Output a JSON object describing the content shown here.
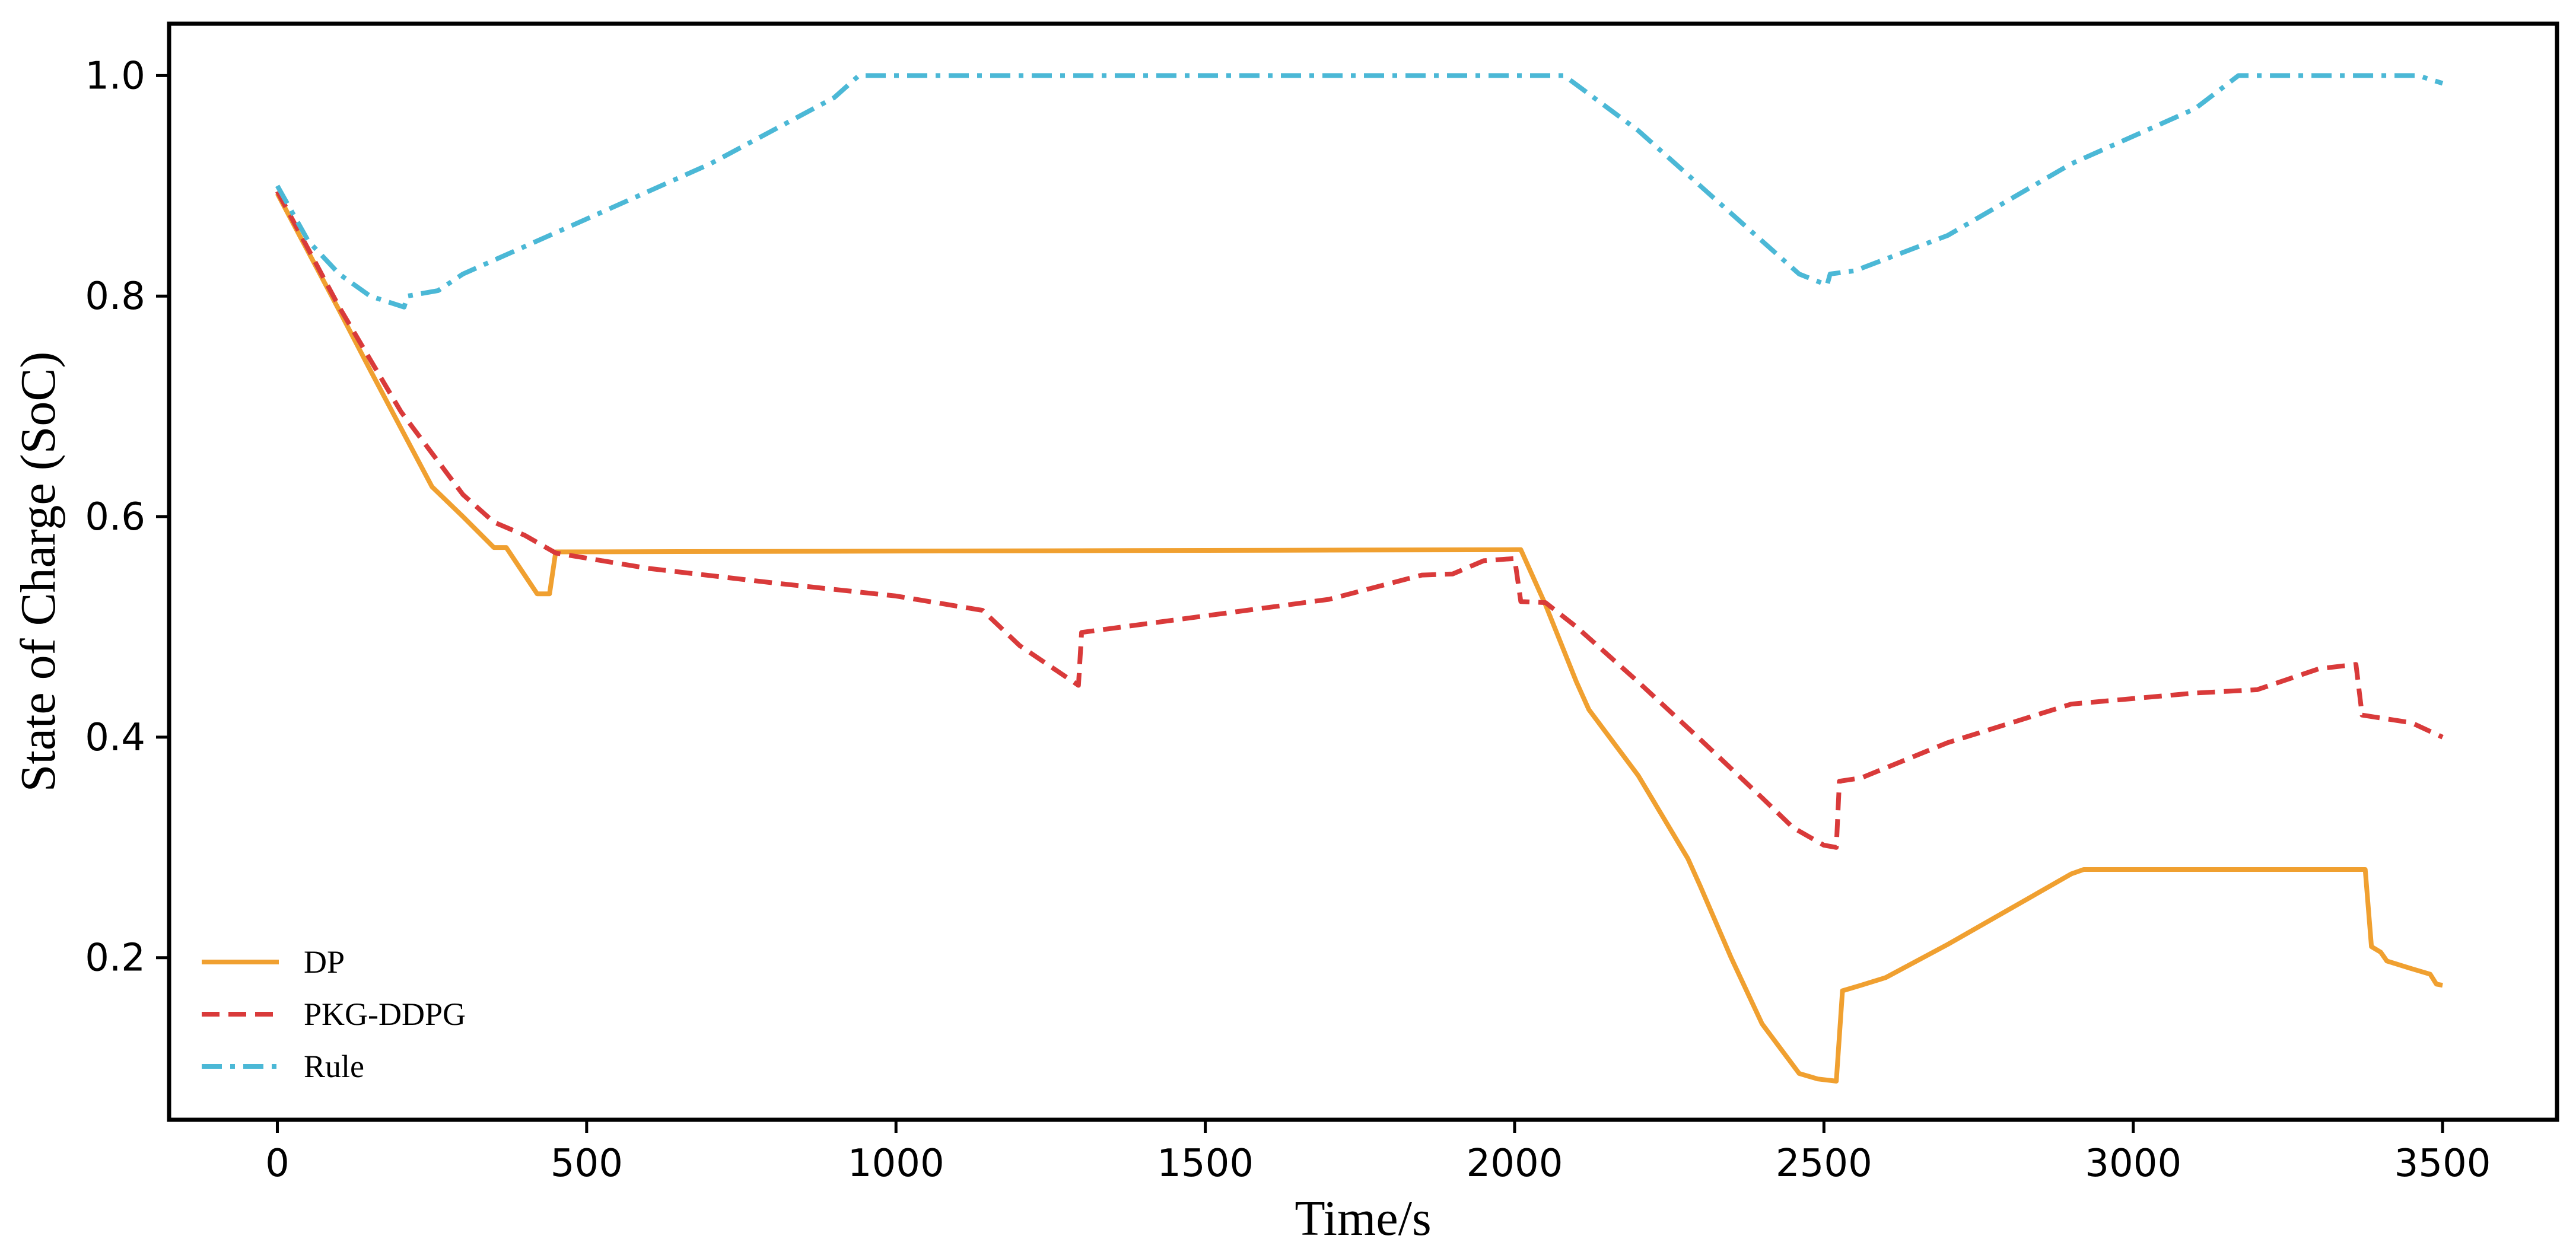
{
  "chart_data": {
    "type": "line",
    "title": "",
    "xlabel": "Time/s",
    "ylabel": "State of Charge (SoC)",
    "xlim": [
      -175,
      3685
    ],
    "ylim": [
      0.053,
      1.047
    ],
    "xticks": [
      0,
      500,
      1000,
      1500,
      2000,
      2500,
      3000,
      3500
    ],
    "xtick_labels": [
      "0",
      "500",
      "1000",
      "1500",
      "2000",
      "2500",
      "3000",
      "3500"
    ],
    "yticks": [
      0.2,
      0.4,
      0.6,
      0.8,
      1.0
    ],
    "ytick_labels": [
      "0.2",
      "0.4",
      "0.6",
      "0.8",
      "1.0"
    ],
    "grid": false,
    "legend_position": "lower-left",
    "series": [
      {
        "name": "DP",
        "color": "#F0A030",
        "dash": "solid",
        "points": [
          [
            0,
            0.893
          ],
          [
            50,
            0.84
          ],
          [
            100,
            0.787
          ],
          [
            150,
            0.733
          ],
          [
            200,
            0.68
          ],
          [
            250,
            0.627
          ],
          [
            300,
            0.6
          ],
          [
            350,
            0.572
          ],
          [
            370,
            0.572
          ],
          [
            420,
            0.53
          ],
          [
            440,
            0.53
          ],
          [
            450,
            0.568
          ],
          [
            2000,
            0.57
          ],
          [
            2010,
            0.57
          ],
          [
            2050,
            0.52
          ],
          [
            2100,
            0.45
          ],
          [
            2120,
            0.425
          ],
          [
            2200,
            0.365
          ],
          [
            2280,
            0.29
          ],
          [
            2300,
            0.265
          ],
          [
            2350,
            0.2
          ],
          [
            2400,
            0.14
          ],
          [
            2460,
            0.095
          ],
          [
            2490,
            0.09
          ],
          [
            2520,
            0.088
          ],
          [
            2530,
            0.17
          ],
          [
            2560,
            0.175
          ],
          [
            2600,
            0.182
          ],
          [
            2700,
            0.212
          ],
          [
            2800,
            0.244
          ],
          [
            2900,
            0.276
          ],
          [
            2920,
            0.28
          ],
          [
            3000,
            0.28
          ],
          [
            3375,
            0.28
          ],
          [
            3385,
            0.21
          ],
          [
            3400,
            0.205
          ],
          [
            3410,
            0.197
          ],
          [
            3450,
            0.19
          ],
          [
            3480,
            0.185
          ],
          [
            3490,
            0.176
          ],
          [
            3500,
            0.175
          ]
        ]
      },
      {
        "name": "PKG-DDPG",
        "color": "#D93A3A",
        "dash": "dashed",
        "points": [
          [
            0,
            0.895
          ],
          [
            100,
            0.79
          ],
          [
            200,
            0.695
          ],
          [
            300,
            0.62
          ],
          [
            350,
            0.595
          ],
          [
            400,
            0.583
          ],
          [
            450,
            0.567
          ],
          [
            600,
            0.553
          ],
          [
            800,
            0.54
          ],
          [
            1000,
            0.528
          ],
          [
            1140,
            0.515
          ],
          [
            1200,
            0.483
          ],
          [
            1295,
            0.447
          ],
          [
            1300,
            0.495
          ],
          [
            1500,
            0.51
          ],
          [
            1700,
            0.525
          ],
          [
            1850,
            0.547
          ],
          [
            1900,
            0.548
          ],
          [
            1950,
            0.56
          ],
          [
            2000,
            0.562
          ],
          [
            2010,
            0.523
          ],
          [
            2050,
            0.522
          ],
          [
            2100,
            0.5
          ],
          [
            2200,
            0.45
          ],
          [
            2300,
            0.398
          ],
          [
            2400,
            0.345
          ],
          [
            2450,
            0.318
          ],
          [
            2500,
            0.302
          ],
          [
            2520,
            0.3
          ],
          [
            2525,
            0.36
          ],
          [
            2560,
            0.363
          ],
          [
            2700,
            0.395
          ],
          [
            2900,
            0.43
          ],
          [
            3100,
            0.44
          ],
          [
            3200,
            0.443
          ],
          [
            3300,
            0.462
          ],
          [
            3360,
            0.466
          ],
          [
            3370,
            0.42
          ],
          [
            3450,
            0.413
          ],
          [
            3500,
            0.4
          ]
        ]
      },
      {
        "name": "Rule",
        "color": "#4BB8D6",
        "dash": "dashdot",
        "points": [
          [
            0,
            0.9
          ],
          [
            50,
            0.85
          ],
          [
            100,
            0.82
          ],
          [
            150,
            0.8
          ],
          [
            205,
            0.79
          ],
          [
            210,
            0.8
          ],
          [
            260,
            0.805
          ],
          [
            300,
            0.82
          ],
          [
            500,
            0.87
          ],
          [
            700,
            0.92
          ],
          [
            900,
            0.98
          ],
          [
            940,
            1.0
          ],
          [
            1500,
            1.0
          ],
          [
            2000,
            1.0
          ],
          [
            2080,
            1.0
          ],
          [
            2200,
            0.95
          ],
          [
            2300,
            0.9
          ],
          [
            2400,
            0.85
          ],
          [
            2460,
            0.82
          ],
          [
            2505,
            0.81
          ],
          [
            2510,
            0.82
          ],
          [
            2550,
            0.823
          ],
          [
            2700,
            0.855
          ],
          [
            2900,
            0.92
          ],
          [
            3100,
            0.97
          ],
          [
            3170,
            1.0
          ],
          [
            3300,
            1.0
          ],
          [
            3460,
            1.0
          ],
          [
            3500,
            0.993
          ]
        ]
      }
    ]
  }
}
